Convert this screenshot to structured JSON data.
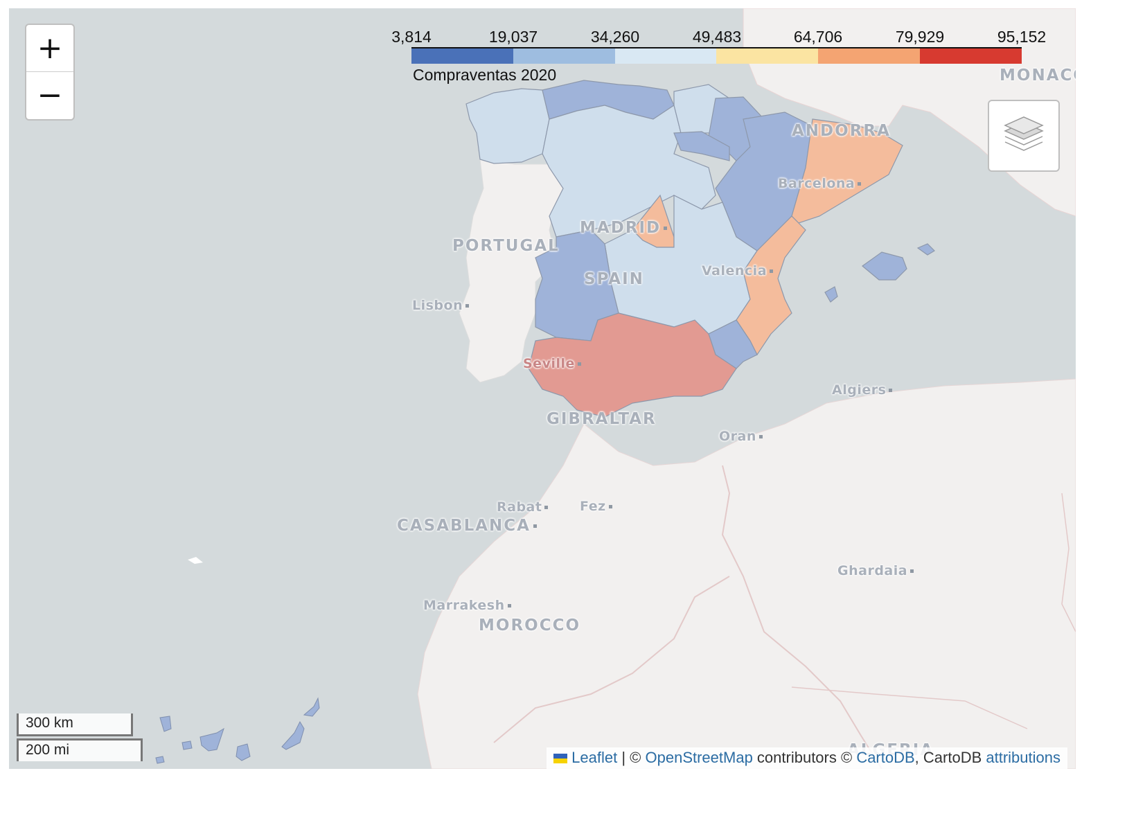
{
  "legend": {
    "caption": "Compraventas 2020",
    "ticks": [
      "3,814",
      "19,037",
      "34,260",
      "49,483",
      "64,706",
      "79,929",
      "95,152"
    ],
    "colors": [
      "#4a71b8",
      "#9ebde0",
      "#d9e8f3",
      "#fbe4a2",
      "#f4a472",
      "#d73a30"
    ]
  },
  "controls": {
    "zoom_in": "+",
    "zoom_out": "−"
  },
  "labels": {
    "monaco": "MONACO",
    "andorra": "ANDORRA",
    "barcelona": "Barcelona",
    "madrid": "MADRID",
    "portugal": "PORTUGAL",
    "spain": "SPAIN",
    "valencia": "Valencia",
    "lisbon": "Lisbon",
    "seville": "Seville",
    "gibraltar": "GIBRALTAR",
    "algiers": "Algiers",
    "oran": "Oran",
    "rabat": "Rabat",
    "fez": "Fez",
    "casablanca": "CASABLANCA",
    "ghardaia": "Ghardaia",
    "marrakesh": "Marrakesh",
    "morocco": "MOROCCO",
    "algeria": "ALGERIA"
  },
  "scale": {
    "km": "300 km",
    "mi": "200 mi"
  },
  "attribution": {
    "leaflet": "Leaflet",
    "sep1": " | © ",
    "osm": "OpenStreetMap",
    "contributors": " contributors © ",
    "cartodb": "CartoDB",
    "sep2": ", CartoDB ",
    "attributions": "attributions"
  },
  "colors": {
    "sea": "#d4dadc",
    "land": "#f2f0ef",
    "low": "#9fb3d9",
    "lowmid": "#cfdeec",
    "high": "#f4bc9c",
    "highest": "#e29a92"
  }
}
